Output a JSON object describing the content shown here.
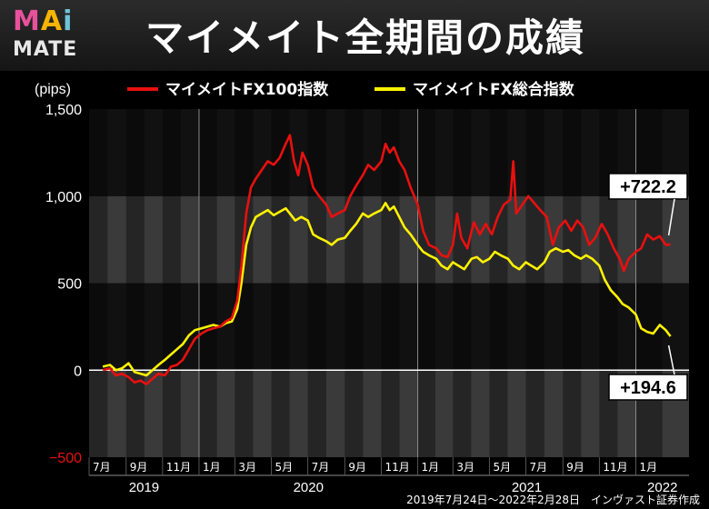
{
  "header": {
    "logo_top": "MAi",
    "logo_bottom": "MATE",
    "title": "マイメイト全期間の成績"
  },
  "footer": {
    "note": "2019年7月24日～2022年2月28日　インヴァスト証券作成"
  },
  "colors": {
    "series_red": "#e8100f",
    "series_yellow": "#fff200",
    "logo_M": "#e8519b",
    "logo_A": "#f6b500",
    "logo_i": "#6fc3d8"
  },
  "chart_data": {
    "type": "line",
    "unit_label": "(pips)",
    "ylim": [
      -500,
      1500
    ],
    "yticks": [
      -500,
      0,
      500,
      1000,
      1500
    ],
    "ytick_labels": [
      "−500",
      "0",
      "500",
      "1,000",
      "1,500"
    ],
    "xlim": [
      "2019-07-01",
      "2022-03-31"
    ],
    "month_ticks": [
      {
        "date": "2019-07-01",
        "label": "7月"
      },
      {
        "date": "2019-09-01",
        "label": "9月"
      },
      {
        "date": "2019-11-01",
        "label": "11月"
      },
      {
        "date": "2020-01-01",
        "label": "1月"
      },
      {
        "date": "2020-03-01",
        "label": "3月"
      },
      {
        "date": "2020-05-01",
        "label": "5月"
      },
      {
        "date": "2020-07-01",
        "label": "7月"
      },
      {
        "date": "2020-09-01",
        "label": "9月"
      },
      {
        "date": "2020-11-01",
        "label": "11月"
      },
      {
        "date": "2021-01-01",
        "label": "1月"
      },
      {
        "date": "2021-03-01",
        "label": "3月"
      },
      {
        "date": "2021-05-01",
        "label": "5月"
      },
      {
        "date": "2021-07-01",
        "label": "7月"
      },
      {
        "date": "2021-09-01",
        "label": "9月"
      },
      {
        "date": "2021-11-01",
        "label": "11月"
      },
      {
        "date": "2022-01-01",
        "label": "1月"
      }
    ],
    "years": [
      {
        "label": "2019",
        "from": "2019-07-01",
        "to": "2020-01-01"
      },
      {
        "label": "2020",
        "from": "2020-01-01",
        "to": "2021-01-01"
      },
      {
        "label": "2021",
        "from": "2021-01-01",
        "to": "2022-01-01"
      },
      {
        "label": "2022",
        "from": "2022-01-01",
        "to": "2022-03-31"
      }
    ],
    "series": [
      {
        "name": "マイメイトFX100指数",
        "color": "#e8100f",
        "points": [
          [
            "2019-07-24",
            0
          ],
          [
            "2019-08-05",
            10
          ],
          [
            "2019-08-15",
            -30
          ],
          [
            "2019-08-25",
            -20
          ],
          [
            "2019-09-05",
            -40
          ],
          [
            "2019-09-15",
            -70
          ],
          [
            "2019-09-25",
            -60
          ],
          [
            "2019-10-05",
            -80
          ],
          [
            "2019-10-15",
            -50
          ],
          [
            "2019-10-25",
            -20
          ],
          [
            "2019-11-05",
            -30
          ],
          [
            "2019-11-15",
            20
          ],
          [
            "2019-11-25",
            30
          ],
          [
            "2019-12-05",
            60
          ],
          [
            "2019-12-15",
            120
          ],
          [
            "2019-12-25",
            180
          ],
          [
            "2020-01-05",
            210
          ],
          [
            "2020-01-15",
            230
          ],
          [
            "2020-01-25",
            240
          ],
          [
            "2020-02-05",
            250
          ],
          [
            "2020-02-15",
            280
          ],
          [
            "2020-02-25",
            300
          ],
          [
            "2020-03-05",
            400
          ],
          [
            "2020-03-12",
            600
          ],
          [
            "2020-03-20",
            900
          ],
          [
            "2020-03-28",
            1050
          ],
          [
            "2020-04-05",
            1100
          ],
          [
            "2020-04-15",
            1150
          ],
          [
            "2020-04-25",
            1200
          ],
          [
            "2020-05-05",
            1180
          ],
          [
            "2020-05-15",
            1220
          ],
          [
            "2020-05-25",
            1300
          ],
          [
            "2020-06-01",
            1350
          ],
          [
            "2020-06-08",
            1200
          ],
          [
            "2020-06-15",
            1120
          ],
          [
            "2020-06-22",
            1250
          ],
          [
            "2020-07-01",
            1180
          ],
          [
            "2020-07-10",
            1050
          ],
          [
            "2020-07-20",
            1000
          ],
          [
            "2020-08-01",
            950
          ],
          [
            "2020-08-10",
            880
          ],
          [
            "2020-08-20",
            900
          ],
          [
            "2020-09-01",
            920
          ],
          [
            "2020-09-10",
            1000
          ],
          [
            "2020-09-20",
            1060
          ],
          [
            "2020-10-01",
            1120
          ],
          [
            "2020-10-10",
            1180
          ],
          [
            "2020-10-20",
            1150
          ],
          [
            "2020-11-01",
            1200
          ],
          [
            "2020-11-08",
            1300
          ],
          [
            "2020-11-15",
            1250
          ],
          [
            "2020-11-22",
            1280
          ],
          [
            "2020-12-01",
            1200
          ],
          [
            "2020-12-10",
            1150
          ],
          [
            "2020-12-20",
            1050
          ],
          [
            "2021-01-01",
            950
          ],
          [
            "2021-01-10",
            800
          ],
          [
            "2021-01-20",
            720
          ],
          [
            "2021-02-01",
            700
          ],
          [
            "2021-02-10",
            660
          ],
          [
            "2021-02-20",
            650
          ],
          [
            "2021-03-01",
            720
          ],
          [
            "2021-03-08",
            900
          ],
          [
            "2021-03-15",
            760
          ],
          [
            "2021-03-25",
            700
          ],
          [
            "2021-04-05",
            850
          ],
          [
            "2021-04-15",
            780
          ],
          [
            "2021-04-25",
            840
          ],
          [
            "2021-05-05",
            780
          ],
          [
            "2021-05-15",
            880
          ],
          [
            "2021-05-25",
            950
          ],
          [
            "2021-06-05",
            980
          ],
          [
            "2021-06-10",
            1200
          ],
          [
            "2021-06-15",
            900
          ],
          [
            "2021-06-25",
            950
          ],
          [
            "2021-07-05",
            1000
          ],
          [
            "2021-07-15",
            960
          ],
          [
            "2021-07-25",
            920
          ],
          [
            "2021-08-05",
            880
          ],
          [
            "2021-08-15",
            720
          ],
          [
            "2021-08-25",
            820
          ],
          [
            "2021-09-05",
            860
          ],
          [
            "2021-09-15",
            800
          ],
          [
            "2021-09-25",
            860
          ],
          [
            "2021-10-05",
            820
          ],
          [
            "2021-10-15",
            720
          ],
          [
            "2021-10-25",
            760
          ],
          [
            "2021-11-05",
            840
          ],
          [
            "2021-11-15",
            780
          ],
          [
            "2021-11-25",
            700
          ],
          [
            "2021-12-05",
            640
          ],
          [
            "2021-12-12",
            570
          ],
          [
            "2021-12-20",
            640
          ],
          [
            "2022-01-01",
            680
          ],
          [
            "2022-01-10",
            700
          ],
          [
            "2022-01-20",
            780
          ],
          [
            "2022-01-30",
            750
          ],
          [
            "2022-02-10",
            770
          ],
          [
            "2022-02-20",
            720
          ],
          [
            "2022-02-28",
            722.2
          ]
        ]
      },
      {
        "name": "マイメイトFX総合指数",
        "color": "#fff200",
        "points": [
          [
            "2019-07-24",
            20
          ],
          [
            "2019-08-05",
            30
          ],
          [
            "2019-08-15",
            0
          ],
          [
            "2019-08-25",
            10
          ],
          [
            "2019-09-05",
            40
          ],
          [
            "2019-09-15",
            -10
          ],
          [
            "2019-09-25",
            -20
          ],
          [
            "2019-10-05",
            -30
          ],
          [
            "2019-10-15",
            0
          ],
          [
            "2019-10-25",
            30
          ],
          [
            "2019-11-05",
            60
          ],
          [
            "2019-11-15",
            90
          ],
          [
            "2019-11-25",
            120
          ],
          [
            "2019-12-05",
            150
          ],
          [
            "2019-12-15",
            200
          ],
          [
            "2019-12-25",
            230
          ],
          [
            "2020-01-05",
            240
          ],
          [
            "2020-01-15",
            250
          ],
          [
            "2020-01-25",
            260
          ],
          [
            "2020-02-05",
            250
          ],
          [
            "2020-02-15",
            270
          ],
          [
            "2020-02-25",
            280
          ],
          [
            "2020-03-05",
            350
          ],
          [
            "2020-03-12",
            500
          ],
          [
            "2020-03-20",
            720
          ],
          [
            "2020-03-28",
            820
          ],
          [
            "2020-04-05",
            880
          ],
          [
            "2020-04-15",
            900
          ],
          [
            "2020-04-25",
            920
          ],
          [
            "2020-05-05",
            890
          ],
          [
            "2020-05-15",
            910
          ],
          [
            "2020-05-25",
            930
          ],
          [
            "2020-06-01",
            900
          ],
          [
            "2020-06-10",
            860
          ],
          [
            "2020-06-20",
            880
          ],
          [
            "2020-07-01",
            860
          ],
          [
            "2020-07-10",
            780
          ],
          [
            "2020-07-20",
            760
          ],
          [
            "2020-08-01",
            740
          ],
          [
            "2020-08-10",
            720
          ],
          [
            "2020-08-20",
            750
          ],
          [
            "2020-09-01",
            760
          ],
          [
            "2020-09-10",
            800
          ],
          [
            "2020-09-20",
            840
          ],
          [
            "2020-10-01",
            900
          ],
          [
            "2020-10-10",
            880
          ],
          [
            "2020-10-20",
            900
          ],
          [
            "2020-11-01",
            920
          ],
          [
            "2020-11-08",
            960
          ],
          [
            "2020-11-15",
            920
          ],
          [
            "2020-11-22",
            940
          ],
          [
            "2020-12-01",
            880
          ],
          [
            "2020-12-10",
            820
          ],
          [
            "2020-12-20",
            780
          ],
          [
            "2021-01-01",
            720
          ],
          [
            "2021-01-10",
            680
          ],
          [
            "2021-01-20",
            660
          ],
          [
            "2021-02-01",
            640
          ],
          [
            "2021-02-10",
            600
          ],
          [
            "2021-02-20",
            580
          ],
          [
            "2021-03-01",
            620
          ],
          [
            "2021-03-10",
            600
          ],
          [
            "2021-03-20",
            580
          ],
          [
            "2021-04-01",
            640
          ],
          [
            "2021-04-10",
            650
          ],
          [
            "2021-04-20",
            620
          ],
          [
            "2021-05-01",
            640
          ],
          [
            "2021-05-10",
            680
          ],
          [
            "2021-05-20",
            660
          ],
          [
            "2021-06-01",
            640
          ],
          [
            "2021-06-10",
            600
          ],
          [
            "2021-06-20",
            580
          ],
          [
            "2021-07-01",
            620
          ],
          [
            "2021-07-10",
            600
          ],
          [
            "2021-07-20",
            580
          ],
          [
            "2021-08-01",
            620
          ],
          [
            "2021-08-10",
            680
          ],
          [
            "2021-08-20",
            700
          ],
          [
            "2021-09-01",
            680
          ],
          [
            "2021-09-10",
            690
          ],
          [
            "2021-09-20",
            660
          ],
          [
            "2021-10-01",
            640
          ],
          [
            "2021-10-10",
            660
          ],
          [
            "2021-10-20",
            640
          ],
          [
            "2021-11-01",
            600
          ],
          [
            "2021-11-10",
            520
          ],
          [
            "2021-11-20",
            460
          ],
          [
            "2021-12-01",
            420
          ],
          [
            "2021-12-10",
            380
          ],
          [
            "2021-12-20",
            360
          ],
          [
            "2022-01-01",
            320
          ],
          [
            "2022-01-10",
            240
          ],
          [
            "2022-01-20",
            220
          ],
          [
            "2022-01-30",
            210
          ],
          [
            "2022-02-10",
            260
          ],
          [
            "2022-02-20",
            230
          ],
          [
            "2022-02-28",
            194.6
          ]
        ]
      }
    ],
    "annotations": [
      {
        "label": "+722.2",
        "series": 0
      },
      {
        "label": "+194.6",
        "series": 1
      }
    ]
  }
}
